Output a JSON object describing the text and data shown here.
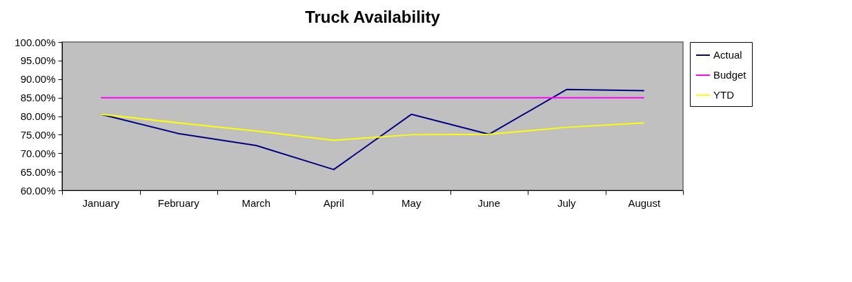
{
  "chart_data": {
    "type": "line",
    "title": "Truck Availability",
    "categories": [
      "January",
      "February",
      "March",
      "April",
      "May",
      "June",
      "July",
      "August"
    ],
    "series": [
      {
        "name": "Actual",
        "color": "#000080",
        "values": [
          80.5,
          75.3,
          72.1,
          65.6,
          80.5,
          75.1,
          87.2,
          86.9
        ]
      },
      {
        "name": "Budget",
        "color": "#ff00ff",
        "values": [
          85,
          85,
          85,
          85,
          85,
          85,
          85,
          85
        ]
      },
      {
        "name": "YTD",
        "color": "#ffff00",
        "values": [
          80.5,
          78.2,
          76.0,
          73.5,
          75.0,
          75.1,
          77.0,
          78.2
        ]
      }
    ],
    "ylim": [
      60,
      100
    ],
    "yticks": [
      {
        "value": 60,
        "label": "60.00%"
      },
      {
        "value": 65,
        "label": "65.00%"
      },
      {
        "value": 70,
        "label": "70.00%"
      },
      {
        "value": 75,
        "label": "75.00%"
      },
      {
        "value": 80,
        "label": "80.00%"
      },
      {
        "value": 85,
        "label": "85.00%"
      },
      {
        "value": 90,
        "label": "90.00%"
      },
      {
        "value": 95,
        "label": "95.00%"
      },
      {
        "value": 100,
        "label": "100.00%"
      }
    ],
    "grid": false,
    "legend": "right",
    "marker": "none",
    "line_style": "solid"
  }
}
